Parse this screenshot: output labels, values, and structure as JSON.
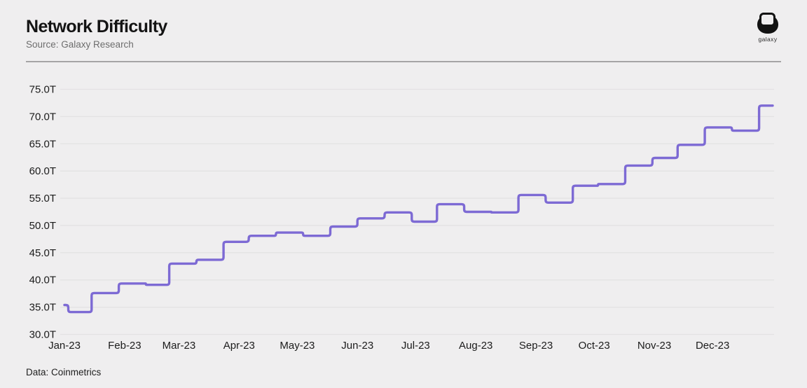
{
  "header": {
    "title": "Network Difficulty",
    "source": "Source: Galaxy Research",
    "brand": "galaxy"
  },
  "footer": {
    "note": "Data: Coinmetrics"
  },
  "colors": {
    "background": "#efeeef",
    "line": "#7d6ad4",
    "grid": "#e3e2e3",
    "title": "#141414",
    "subtitle": "#6d6d6d",
    "axis_text": "#1b1b1b",
    "divider": "#a5a4a5"
  },
  "chart_data": {
    "type": "line",
    "subtype": "step",
    "title": "Network Difficulty",
    "xlabel": "",
    "ylabel": "",
    "unit": "T",
    "ylim": [
      30,
      75
    ],
    "y_tick_interval": 5,
    "y_tick_labels": [
      "30.0T",
      "35.0T",
      "40.0T",
      "45.0T",
      "50.0T",
      "55.0T",
      "60.0T",
      "65.0T",
      "70.0T",
      "75.0T"
    ],
    "x_range": [
      "2023-01-01",
      "2024-01-01"
    ],
    "x_tick_labels": [
      "Jan-23",
      "Feb-23",
      "Mar-23",
      "Apr-23",
      "May-23",
      "Jun-23",
      "Jul-23",
      "Aug-23",
      "Sep-23",
      "Oct-23",
      "Nov-23",
      "Dec-23"
    ],
    "grid": "horizontal-only",
    "legend": "none",
    "series": [
      {
        "name": "Network Difficulty (trillions)",
        "color": "#7d6ad4",
        "steps": [
          {
            "date": "2023-01-01",
            "value": 35.4
          },
          {
            "date": "2023-01-03",
            "value": 34.1
          },
          {
            "date": "2023-01-15",
            "value": 37.6
          },
          {
            "date": "2023-01-29",
            "value": 39.35
          },
          {
            "date": "2023-02-12",
            "value": 39.1
          },
          {
            "date": "2023-02-24",
            "value": 43.0
          },
          {
            "date": "2023-03-10",
            "value": 43.7
          },
          {
            "date": "2023-03-24",
            "value": 47.0
          },
          {
            "date": "2023-04-06",
            "value": 48.1
          },
          {
            "date": "2023-04-20",
            "value": 48.7
          },
          {
            "date": "2023-05-04",
            "value": 48.1
          },
          {
            "date": "2023-05-18",
            "value": 49.8
          },
          {
            "date": "2023-06-01",
            "value": 51.3
          },
          {
            "date": "2023-06-15",
            "value": 52.4
          },
          {
            "date": "2023-06-29",
            "value": 50.7
          },
          {
            "date": "2023-07-12",
            "value": 53.9
          },
          {
            "date": "2023-07-26",
            "value": 52.5
          },
          {
            "date": "2023-08-09",
            "value": 52.4
          },
          {
            "date": "2023-08-23",
            "value": 55.6
          },
          {
            "date": "2023-09-06",
            "value": 54.2
          },
          {
            "date": "2023-09-20",
            "value": 57.3
          },
          {
            "date": "2023-10-03",
            "value": 57.6
          },
          {
            "date": "2023-10-17",
            "value": 61.0
          },
          {
            "date": "2023-10-31",
            "value": 62.4
          },
          {
            "date": "2023-11-13",
            "value": 64.8
          },
          {
            "date": "2023-11-27",
            "value": 68.0
          },
          {
            "date": "2023-12-11",
            "value": 67.4
          },
          {
            "date": "2023-12-25",
            "value": 72.0
          },
          {
            "date": "2024-01-01",
            "value": 72.0
          }
        ]
      }
    ]
  }
}
